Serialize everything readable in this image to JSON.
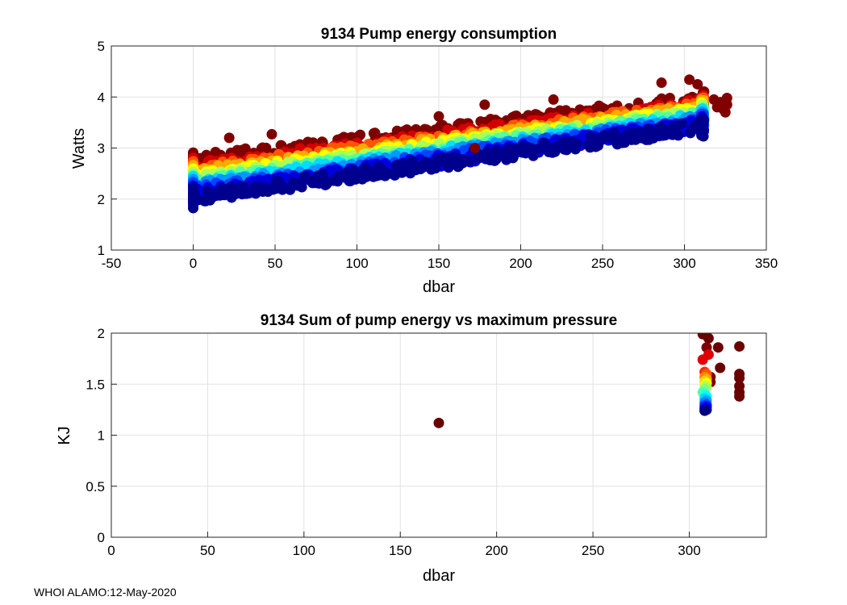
{
  "footer": "WHOI ALAMO:12-May-2020",
  "chart_data": [
    {
      "type": "scatter",
      "title": "9134 Pump energy consumption",
      "xlabel": "dbar",
      "ylabel": "Watts",
      "xlim": [
        -50,
        350
      ],
      "ylim": [
        1,
        5
      ],
      "xticks": [
        -50,
        0,
        50,
        100,
        150,
        200,
        250,
        300,
        350
      ],
      "yticks": [
        1,
        2,
        3,
        4,
        5
      ],
      "xtick_labels": [
        "-50",
        "0",
        "50",
        "100",
        "150",
        "200",
        "250",
        "300",
        "350"
      ],
      "ytick_labels": [
        "1",
        "2",
        "3",
        "4",
        "5"
      ],
      "grid": true,
      "colormap": "jet (profile index)",
      "series_bands": [
        {
          "color": "#800000",
          "base_at_0": 2.75,
          "base_at_310": 3.95
        },
        {
          "color": "#d40000",
          "base_at_0": 2.62,
          "base_at_310": 3.85
        },
        {
          "color": "#ff5500",
          "base_at_0": 2.55,
          "base_at_310": 3.8
        },
        {
          "color": "#ffaa00",
          "base_at_0": 2.48,
          "base_at_310": 3.75
        },
        {
          "color": "#ffff00",
          "base_at_0": 2.42,
          "base_at_310": 3.7
        },
        {
          "color": "#aaff55",
          "base_at_0": 2.36,
          "base_at_310": 3.66
        },
        {
          "color": "#55ff99",
          "base_at_0": 2.3,
          "base_at_310": 3.62
        },
        {
          "color": "#00ddff",
          "base_at_0": 2.25,
          "base_at_310": 3.58
        },
        {
          "color": "#0099ff",
          "base_at_0": 2.2,
          "base_at_310": 3.54
        },
        {
          "color": "#0044ff",
          "base_at_0": 2.14,
          "base_at_310": 3.5
        },
        {
          "color": "#0000dd",
          "base_at_0": 2.08,
          "base_at_310": 3.46
        },
        {
          "color": "#00008f",
          "base_at_0": 2.02,
          "base_at_310": 3.42
        }
      ],
      "pressure_range": [
        0,
        312
      ],
      "extra_points": [
        {
          "x": 48,
          "y": 3.27,
          "color": "#800000"
        },
        {
          "x": 22,
          "y": 3.2,
          "color": "#800000"
        },
        {
          "x": 303,
          "y": 4.34,
          "color": "#800000"
        },
        {
          "x": 308,
          "y": 4.25,
          "color": "#800000"
        },
        {
          "x": 286,
          "y": 4.28,
          "color": "#800000"
        },
        {
          "x": 150,
          "y": 3.62,
          "color": "#800000"
        },
        {
          "x": 178,
          "y": 3.85,
          "color": "#800000"
        },
        {
          "x": 172,
          "y": 3.0,
          "color": "#800000"
        },
        {
          "x": 220,
          "y": 3.95,
          "color": "#800000"
        },
        {
          "x": 318,
          "y": 3.95,
          "color": "#800000"
        },
        {
          "x": 320,
          "y": 3.8,
          "color": "#800000"
        },
        {
          "x": 322,
          "y": 3.9,
          "color": "#800000"
        },
        {
          "x": 324,
          "y": 3.75,
          "color": "#800000"
        },
        {
          "x": 326,
          "y": 3.98,
          "color": "#800000"
        },
        {
          "x": 325,
          "y": 3.7,
          "color": "#800000"
        },
        {
          "x": 326,
          "y": 3.85,
          "color": "#800000"
        }
      ]
    },
    {
      "type": "scatter",
      "title": "9134 Sum of pump energy vs maximum pressure",
      "xlabel": "dbar",
      "ylabel": "KJ",
      "xlim": [
        0,
        340
      ],
      "ylim": [
        0,
        2
      ],
      "xticks": [
        0,
        50,
        100,
        150,
        200,
        250,
        300
      ],
      "yticks": [
        0,
        0.5,
        1,
        1.5,
        2
      ],
      "xtick_labels": [
        "0",
        "50",
        "100",
        "150",
        "200",
        "250",
        "300"
      ],
      "ytick_labels": [
        "0",
        "0.5",
        "1",
        "1.5",
        "2"
      ],
      "grid": true,
      "points": [
        {
          "x": 170,
          "y": 1.12,
          "color": "#6b0000"
        },
        {
          "x": 307,
          "y": 1.99,
          "color": "#6b0000"
        },
        {
          "x": 310,
          "y": 1.95,
          "color": "#6b0000"
        },
        {
          "x": 309,
          "y": 1.86,
          "color": "#800000"
        },
        {
          "x": 315,
          "y": 1.86,
          "color": "#6b0000"
        },
        {
          "x": 316,
          "y": 1.66,
          "color": "#6b0000"
        },
        {
          "x": 326,
          "y": 1.87,
          "color": "#6b0000"
        },
        {
          "x": 326,
          "y": 1.6,
          "color": "#6b0000"
        },
        {
          "x": 326,
          "y": 1.56,
          "color": "#6b0000"
        },
        {
          "x": 326,
          "y": 1.48,
          "color": "#6b0000"
        },
        {
          "x": 326,
          "y": 1.42,
          "color": "#6b0000"
        },
        {
          "x": 326,
          "y": 1.38,
          "color": "#6b0000"
        },
        {
          "x": 311,
          "y": 1.57,
          "color": "#800000"
        },
        {
          "x": 311,
          "y": 1.52,
          "color": "#800000"
        },
        {
          "x": 307,
          "y": 1.74,
          "color": "#e00000"
        },
        {
          "x": 310,
          "y": 1.79,
          "color": "#e00000"
        },
        {
          "x": 308,
          "y": 1.62,
          "color": "#ff2a00"
        },
        {
          "x": 309,
          "y": 1.6,
          "color": "#ff5500"
        },
        {
          "x": 308,
          "y": 1.57,
          "color": "#ff8000"
        },
        {
          "x": 309,
          "y": 1.55,
          "color": "#ffaa00"
        },
        {
          "x": 308,
          "y": 1.53,
          "color": "#ffd500"
        },
        {
          "x": 309,
          "y": 1.51,
          "color": "#ffff00"
        },
        {
          "x": 308,
          "y": 1.49,
          "color": "#d4ff2a"
        },
        {
          "x": 309,
          "y": 1.47,
          "color": "#aaff55"
        },
        {
          "x": 308,
          "y": 1.45,
          "color": "#80ff80"
        },
        {
          "x": 307,
          "y": 1.42,
          "color": "#55ffaa"
        },
        {
          "x": 308,
          "y": 1.4,
          "color": "#2affd4"
        },
        {
          "x": 309,
          "y": 1.38,
          "color": "#00ffff"
        },
        {
          "x": 308,
          "y": 1.36,
          "color": "#00d4ff"
        },
        {
          "x": 309,
          "y": 1.34,
          "color": "#00aaff"
        },
        {
          "x": 308,
          "y": 1.32,
          "color": "#0080ff"
        },
        {
          "x": 309,
          "y": 1.3,
          "color": "#0055ff"
        },
        {
          "x": 308,
          "y": 1.29,
          "color": "#002aff"
        },
        {
          "x": 309,
          "y": 1.28,
          "color": "#0000ff"
        },
        {
          "x": 308,
          "y": 1.26,
          "color": "#0000d4"
        },
        {
          "x": 309,
          "y": 1.25,
          "color": "#0000aa"
        },
        {
          "x": 308,
          "y": 1.24,
          "color": "#00007f"
        }
      ]
    }
  ]
}
